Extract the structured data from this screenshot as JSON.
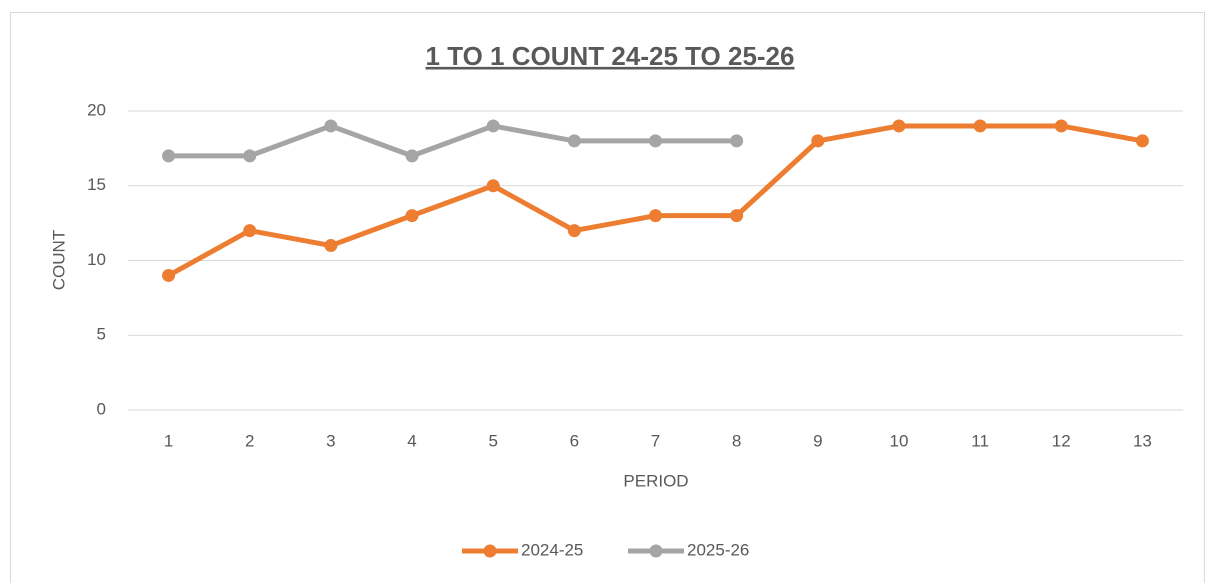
{
  "chart_data": {
    "type": "line",
    "title": "1 TO 1 COUNT 24-25 TO 25-26",
    "x_label": "PERIOD",
    "y_label": "COUNT",
    "categories": [
      "1",
      "2",
      "3",
      "4",
      "5",
      "6",
      "7",
      "8",
      "9",
      "10",
      "11",
      "12",
      "13"
    ],
    "series": [
      {
        "name": "2024-25",
        "color": "#ed7d31",
        "values": [
          9,
          12,
          11,
          13,
          15,
          12,
          13,
          13,
          18,
          19,
          19,
          19,
          18
        ]
      },
      {
        "name": "2025-26",
        "color": "#a5a5a5",
        "values": [
          17,
          17,
          19,
          17,
          19,
          18,
          18,
          18,
          null,
          null,
          null,
          null,
          null
        ]
      }
    ],
    "ylim": [
      0,
      20
    ],
    "yticks": [
      0,
      5,
      10,
      15,
      20
    ],
    "grid": true,
    "legend": "bottom"
  }
}
